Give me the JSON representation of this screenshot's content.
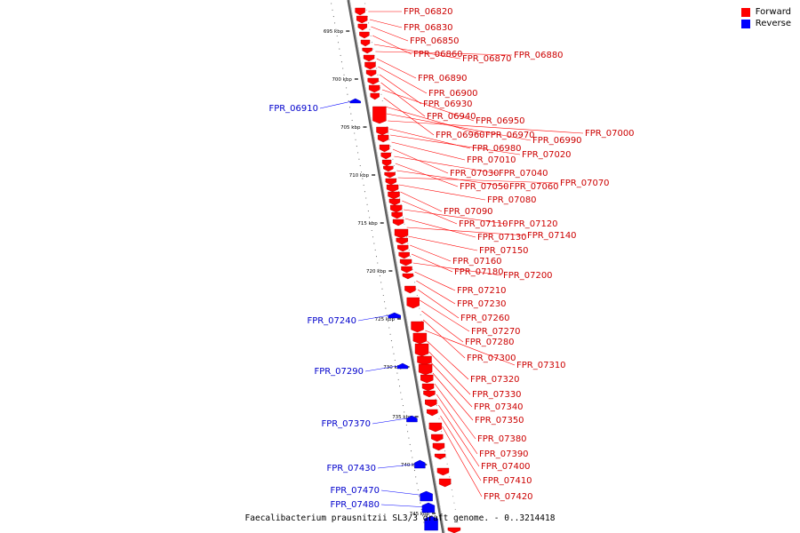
{
  "title": "Faecalibacterium prausnitzii SL3/3 draft genome. - 0..3214418",
  "legend": [
    {
      "label": "Forward",
      "color": "#ff0000"
    },
    {
      "label": "Reverse",
      "color": "#0000ff"
    }
  ],
  "colors": {
    "forward": "#ff0000",
    "reverse": "#0000ff",
    "backbone": "#808080"
  },
  "ticks": [
    "695 kbp",
    "700 kbp",
    "705 kbp",
    "710 kbp",
    "715 kbp",
    "720 kbp",
    "725 kbp",
    "730 kbp",
    "735 kbp",
    "740 kbp",
    "745 kbp"
  ],
  "forward_labels": [
    "FPR_06820",
    "FPR_06830",
    "FPR_06850",
    "FPR_06860",
    "FPR_06870",
    "FPR_06880",
    "FPR_06890",
    "FPR_06900",
    "FPR_06930",
    "FPR_06940",
    "FPR_06950",
    "FPR_06960",
    "FPR_06970",
    "FPR_06990",
    "FPR_07000",
    "FPR_06980",
    "FPR_07020",
    "FPR_07010",
    "FPR_07030",
    "FPR_07040",
    "FPR_07050",
    "FPR_07060",
    "FPR_07070",
    "FPR_07080",
    "FPR_07090",
    "FPR_07110",
    "FPR_07120",
    "FPR_07130",
    "FPR_07140",
    "FPR_07150",
    "FPR_07160",
    "FPR_07180",
    "FPR_07200",
    "FPR_07210",
    "FPR_07230",
    "FPR_07260",
    "FPR_07270",
    "FPR_07280",
    "FPR_07300",
    "FPR_07310",
    "FPR_07320",
    "FPR_07330",
    "FPR_07340",
    "FPR_07350",
    "FPR_07380",
    "FPR_07390",
    "FPR_07400",
    "FPR_07410",
    "FPR_07420"
  ],
  "reverse_labels": [
    "FPR_06910",
    "FPR_07240",
    "FPR_07290",
    "FPR_07370",
    "FPR_07430",
    "FPR_07470",
    "FPR_07480"
  ]
}
